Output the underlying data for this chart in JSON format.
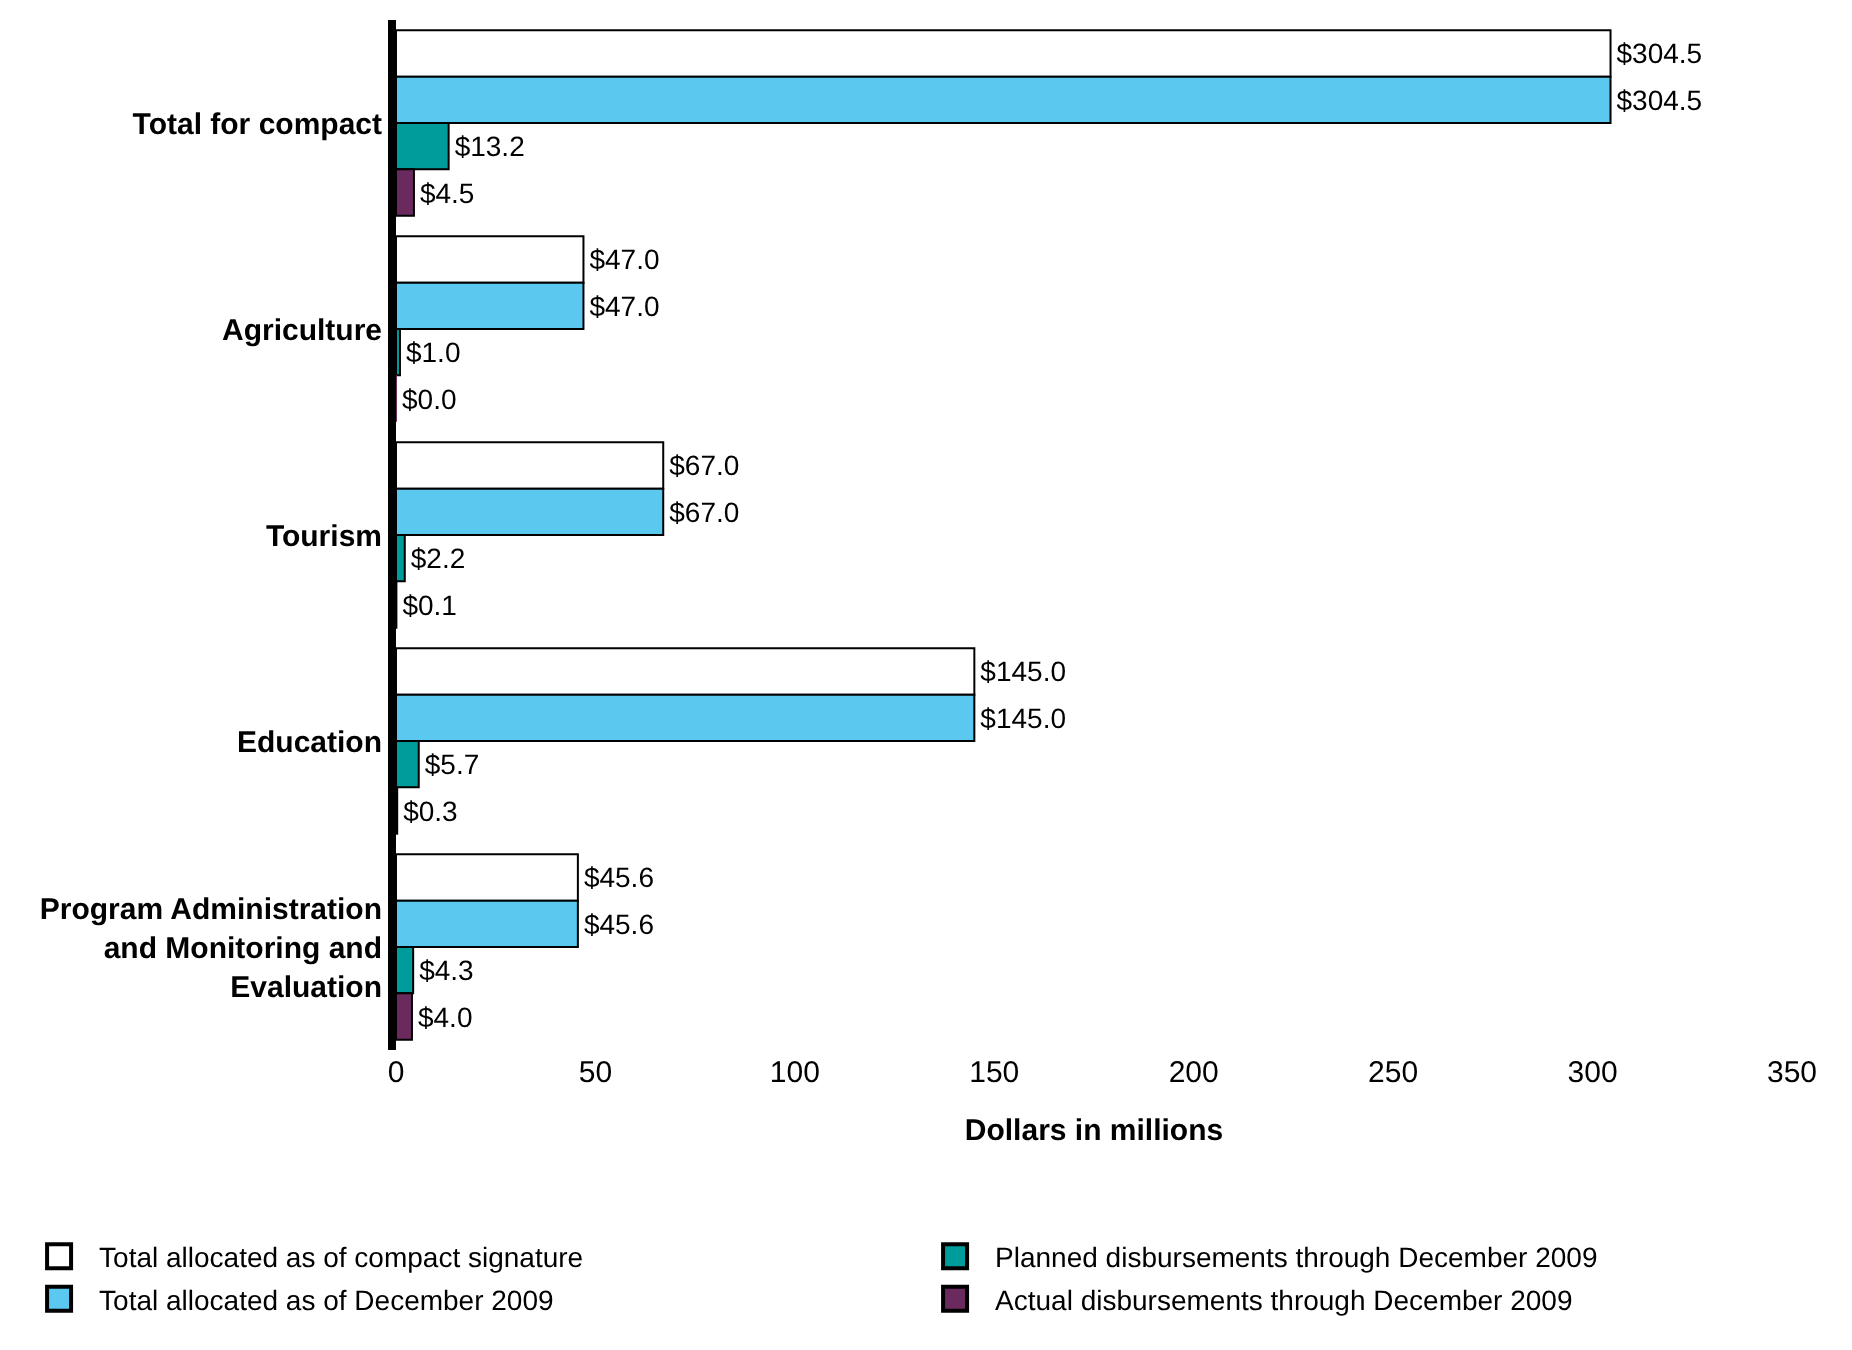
{
  "chart_data": {
    "type": "bar",
    "orientation": "horizontal",
    "xlabel": "Dollars in millions",
    "categories": [
      "Total for compact",
      "Agriculture",
      "Tourism",
      "Education",
      "Program Administration and Monitoring and Evaluation"
    ],
    "xlim": [
      0,
      350
    ],
    "xticks": [
      0,
      50,
      100,
      150,
      200,
      250,
      300,
      350
    ],
    "legend": "bottom",
    "series": [
      {
        "name": "Total allocated as of compact signature",
        "color": "#ffffff",
        "values": [
          304.5,
          47.0,
          67.0,
          145.0,
          45.6
        ],
        "value_labels": [
          "$304.5",
          "$47.0",
          "$67.0",
          "$145.0",
          "$45.6"
        ]
      },
      {
        "name": "Total allocated as of December 2009",
        "color": "#5bc8f0",
        "values": [
          304.5,
          47.0,
          67.0,
          145.0,
          45.6
        ],
        "value_labels": [
          "$304.5",
          "$47.0",
          "$67.0",
          "$145.0",
          "$45.6"
        ]
      },
      {
        "name": "Planned disbursements through December 2009",
        "color": "#009b9b",
        "values": [
          13.2,
          1.0,
          2.2,
          5.7,
          4.3
        ],
        "value_labels": [
          "$13.2",
          "$1.0",
          "$2.2",
          "$5.7",
          "$4.3"
        ]
      },
      {
        "name": "Actual disbursements through December 2009",
        "color": "#6b2a5e",
        "values": [
          4.5,
          0.0,
          0.1,
          0.3,
          4.0
        ],
        "value_labels": [
          "$4.5",
          "$0.0",
          "$0.1",
          "$0.3",
          "$4.0"
        ]
      }
    ]
  }
}
